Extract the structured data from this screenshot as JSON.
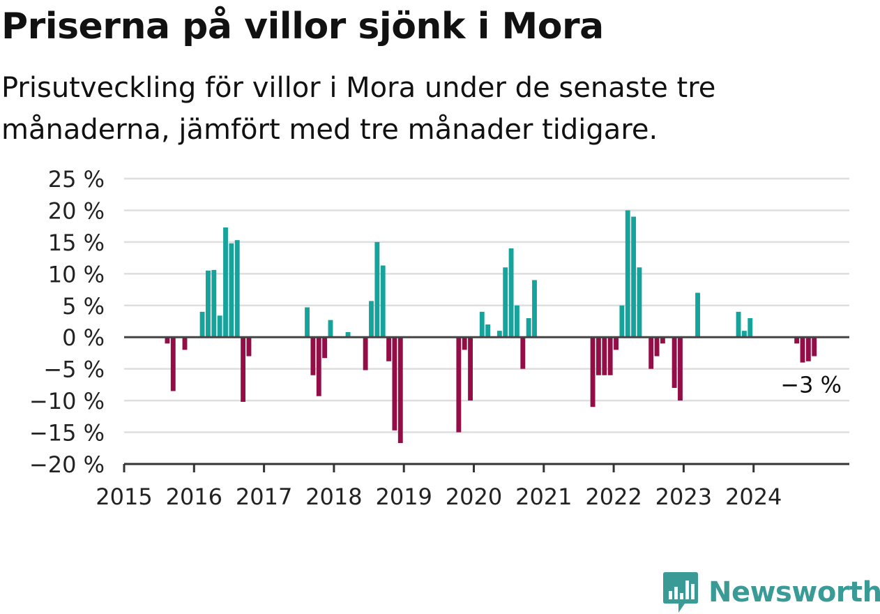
{
  "title": "Priserna på villor sjönk i Mora",
  "subtitle": "Prisutveckling för villor i Mora under de senaste tre månaderna, jämfört med tre månader tidigare.",
  "brand": {
    "name": "Newsworthy"
  },
  "colors": {
    "positive": "#16a39b",
    "negative": "#930d47",
    "grid": "#dedede",
    "axis": "#333333",
    "brand": "#3a9a96"
  },
  "chart_data": {
    "type": "bar",
    "title": "Priserna på villor sjönk i Mora",
    "subtitle": "Prisutveckling för villor i Mora under de senaste tre månaderna, jämfört med tre månader tidigare.",
    "xlabel": "",
    "ylabel": "",
    "ylim": [
      -20,
      25
    ],
    "yticks": [
      25,
      20,
      15,
      10,
      5,
      0,
      -5,
      -10,
      -15,
      -20
    ],
    "ytick_labels": [
      "25 %",
      "20 %",
      "15 %",
      "10 %",
      "5 %",
      "0 %",
      "−5 %",
      "−10 %",
      "−15 %",
      "−20 %"
    ],
    "xtick_labels": [
      "2015",
      "2016",
      "2017",
      "2018",
      "2019",
      "2020",
      "2021",
      "2022",
      "2023",
      "2024"
    ],
    "grid": true,
    "legend": "none",
    "annotation": {
      "text": "−3 %",
      "value": -3
    },
    "series": [
      {
        "values": [
          {
            "year": 2015,
            "month": 8,
            "value": -1
          },
          {
            "year": 2015,
            "month": 9,
            "value": -8.5
          },
          {
            "year": 2015,
            "month": 11,
            "value": -2
          },
          {
            "year": 2016,
            "month": 2,
            "value": 4
          },
          {
            "year": 2016,
            "month": 3,
            "value": 10.5
          },
          {
            "year": 2016,
            "month": 4,
            "value": 10.6
          },
          {
            "year": 2016,
            "month": 5,
            "value": 3.4
          },
          {
            "year": 2016,
            "month": 6,
            "value": 17.3
          },
          {
            "year": 2016,
            "month": 7,
            "value": 14.8
          },
          {
            "year": 2016,
            "month": 8,
            "value": 15.3
          },
          {
            "year": 2016,
            "month": 9,
            "value": -10.2
          },
          {
            "year": 2016,
            "month": 10,
            "value": -3
          },
          {
            "year": 2017,
            "month": 8,
            "value": 4.7
          },
          {
            "year": 2017,
            "month": 9,
            "value": -6
          },
          {
            "year": 2017,
            "month": 10,
            "value": -9.3
          },
          {
            "year": 2017,
            "month": 11,
            "value": -3.3
          },
          {
            "year": 2017,
            "month": 12,
            "value": 2.7
          },
          {
            "year": 2018,
            "month": 3,
            "value": 0.8
          },
          {
            "year": 2018,
            "month": 6,
            "value": -5.2
          },
          {
            "year": 2018,
            "month": 7,
            "value": 5.7
          },
          {
            "year": 2018,
            "month": 8,
            "value": 15
          },
          {
            "year": 2018,
            "month": 9,
            "value": 11.3
          },
          {
            "year": 2018,
            "month": 10,
            "value": -3.8
          },
          {
            "year": 2018,
            "month": 11,
            "value": -14.7
          },
          {
            "year": 2018,
            "month": 12,
            "value": -16.7
          },
          {
            "year": 2019,
            "month": 10,
            "value": -15
          },
          {
            "year": 2019,
            "month": 11,
            "value": -2
          },
          {
            "year": 2019,
            "month": 12,
            "value": -10
          },
          {
            "year": 2020,
            "month": 2,
            "value": 4
          },
          {
            "year": 2020,
            "month": 3,
            "value": 2
          },
          {
            "year": 2020,
            "month": 5,
            "value": 1
          },
          {
            "year": 2020,
            "month": 6,
            "value": 11
          },
          {
            "year": 2020,
            "month": 7,
            "value": 14
          },
          {
            "year": 2020,
            "month": 8,
            "value": 5
          },
          {
            "year": 2020,
            "month": 9,
            "value": -5
          },
          {
            "year": 2020,
            "month": 10,
            "value": 3
          },
          {
            "year": 2020,
            "month": 11,
            "value": 9
          },
          {
            "year": 2021,
            "month": 9,
            "value": -11
          },
          {
            "year": 2021,
            "month": 10,
            "value": -6
          },
          {
            "year": 2021,
            "month": 11,
            "value": -6
          },
          {
            "year": 2021,
            "month": 12,
            "value": -6
          },
          {
            "year": 2022,
            "month": 1,
            "value": -2
          },
          {
            "year": 2022,
            "month": 2,
            "value": 5
          },
          {
            "year": 2022,
            "month": 3,
            "value": 20
          },
          {
            "year": 2022,
            "month": 4,
            "value": 19
          },
          {
            "year": 2022,
            "month": 5,
            "value": 11
          },
          {
            "year": 2022,
            "month": 7,
            "value": -5
          },
          {
            "year": 2022,
            "month": 8,
            "value": -3
          },
          {
            "year": 2022,
            "month": 9,
            "value": -1
          },
          {
            "year": 2022,
            "month": 11,
            "value": -8
          },
          {
            "year": 2022,
            "month": 12,
            "value": -10
          },
          {
            "year": 2023,
            "month": 3,
            "value": 7
          },
          {
            "year": 2023,
            "month": 10,
            "value": 4
          },
          {
            "year": 2023,
            "month": 11,
            "value": 1
          },
          {
            "year": 2023,
            "month": 12,
            "value": 3
          },
          {
            "year": 2024,
            "month": 8,
            "value": -1
          },
          {
            "year": 2024,
            "month": 9,
            "value": -4
          },
          {
            "year": 2024,
            "month": 10,
            "value": -3.8
          },
          {
            "year": 2024,
            "month": 11,
            "value": -3
          }
        ]
      }
    ]
  }
}
